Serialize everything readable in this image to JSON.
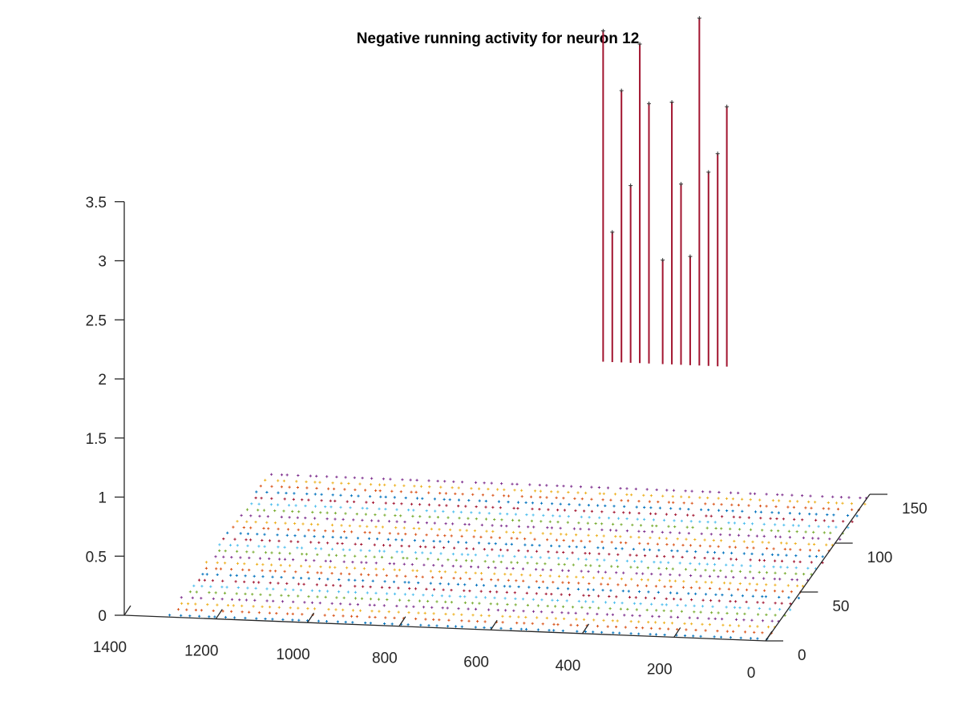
{
  "chart_data": {
    "type": "scatter3d",
    "title": "Negative running activity for neuron 12",
    "xlabel": "",
    "ylabel": "",
    "zlabel": "",
    "x_axis": {
      "range": [
        0,
        1400
      ],
      "ticks": [
        "0",
        "200",
        "400",
        "600",
        "800",
        "1000",
        "1200",
        "1400"
      ]
    },
    "y_axis": {
      "range": [
        0,
        150
      ],
      "ticks": [
        "0",
        "50",
        "100",
        "150"
      ]
    },
    "z_axis": {
      "range": [
        0,
        3.5
      ],
      "ticks": [
        "0",
        "0.5",
        "1",
        "1.5",
        "2",
        "2.5",
        "3",
        "3.5"
      ]
    },
    "marker": "+",
    "grid": false,
    "series_colors": [
      "#0072BD",
      "#D95319",
      "#EDB120",
      "#7E2F8E",
      "#77AC30",
      "#4DBEEE",
      "#A2142F"
    ],
    "baseline_rows_y": [
      2,
      8,
      14,
      20,
      26,
      32,
      38,
      44,
      50,
      56,
      62,
      68,
      74,
      80,
      86,
      92,
      98,
      104,
      110,
      116,
      122,
      128,
      134,
      140,
      146
    ],
    "baseline_x_step": 20,
    "baseline_z": 0,
    "spikes": [
      {
        "x": 570,
        "y": 142,
        "z": 3.9
      },
      {
        "x": 550,
        "y": 142,
        "z": 2.2
      },
      {
        "x": 530,
        "y": 142,
        "z": 3.4
      },
      {
        "x": 510,
        "y": 142,
        "z": 2.6
      },
      {
        "x": 490,
        "y": 142,
        "z": 3.8
      },
      {
        "x": 470,
        "y": 142,
        "z": 3.3
      },
      {
        "x": 440,
        "y": 142,
        "z": 1.98
      },
      {
        "x": 420,
        "y": 142,
        "z": 3.32
      },
      {
        "x": 400,
        "y": 142,
        "z": 2.63
      },
      {
        "x": 380,
        "y": 142,
        "z": 2.02
      },
      {
        "x": 360,
        "y": 142,
        "z": 4.04
      },
      {
        "x": 340,
        "y": 142,
        "z": 2.74
      },
      {
        "x": 320,
        "y": 142,
        "z": 2.9
      },
      {
        "x": 300,
        "y": 142,
        "z": 3.3
      }
    ],
    "spike_color": "#A2142F"
  }
}
